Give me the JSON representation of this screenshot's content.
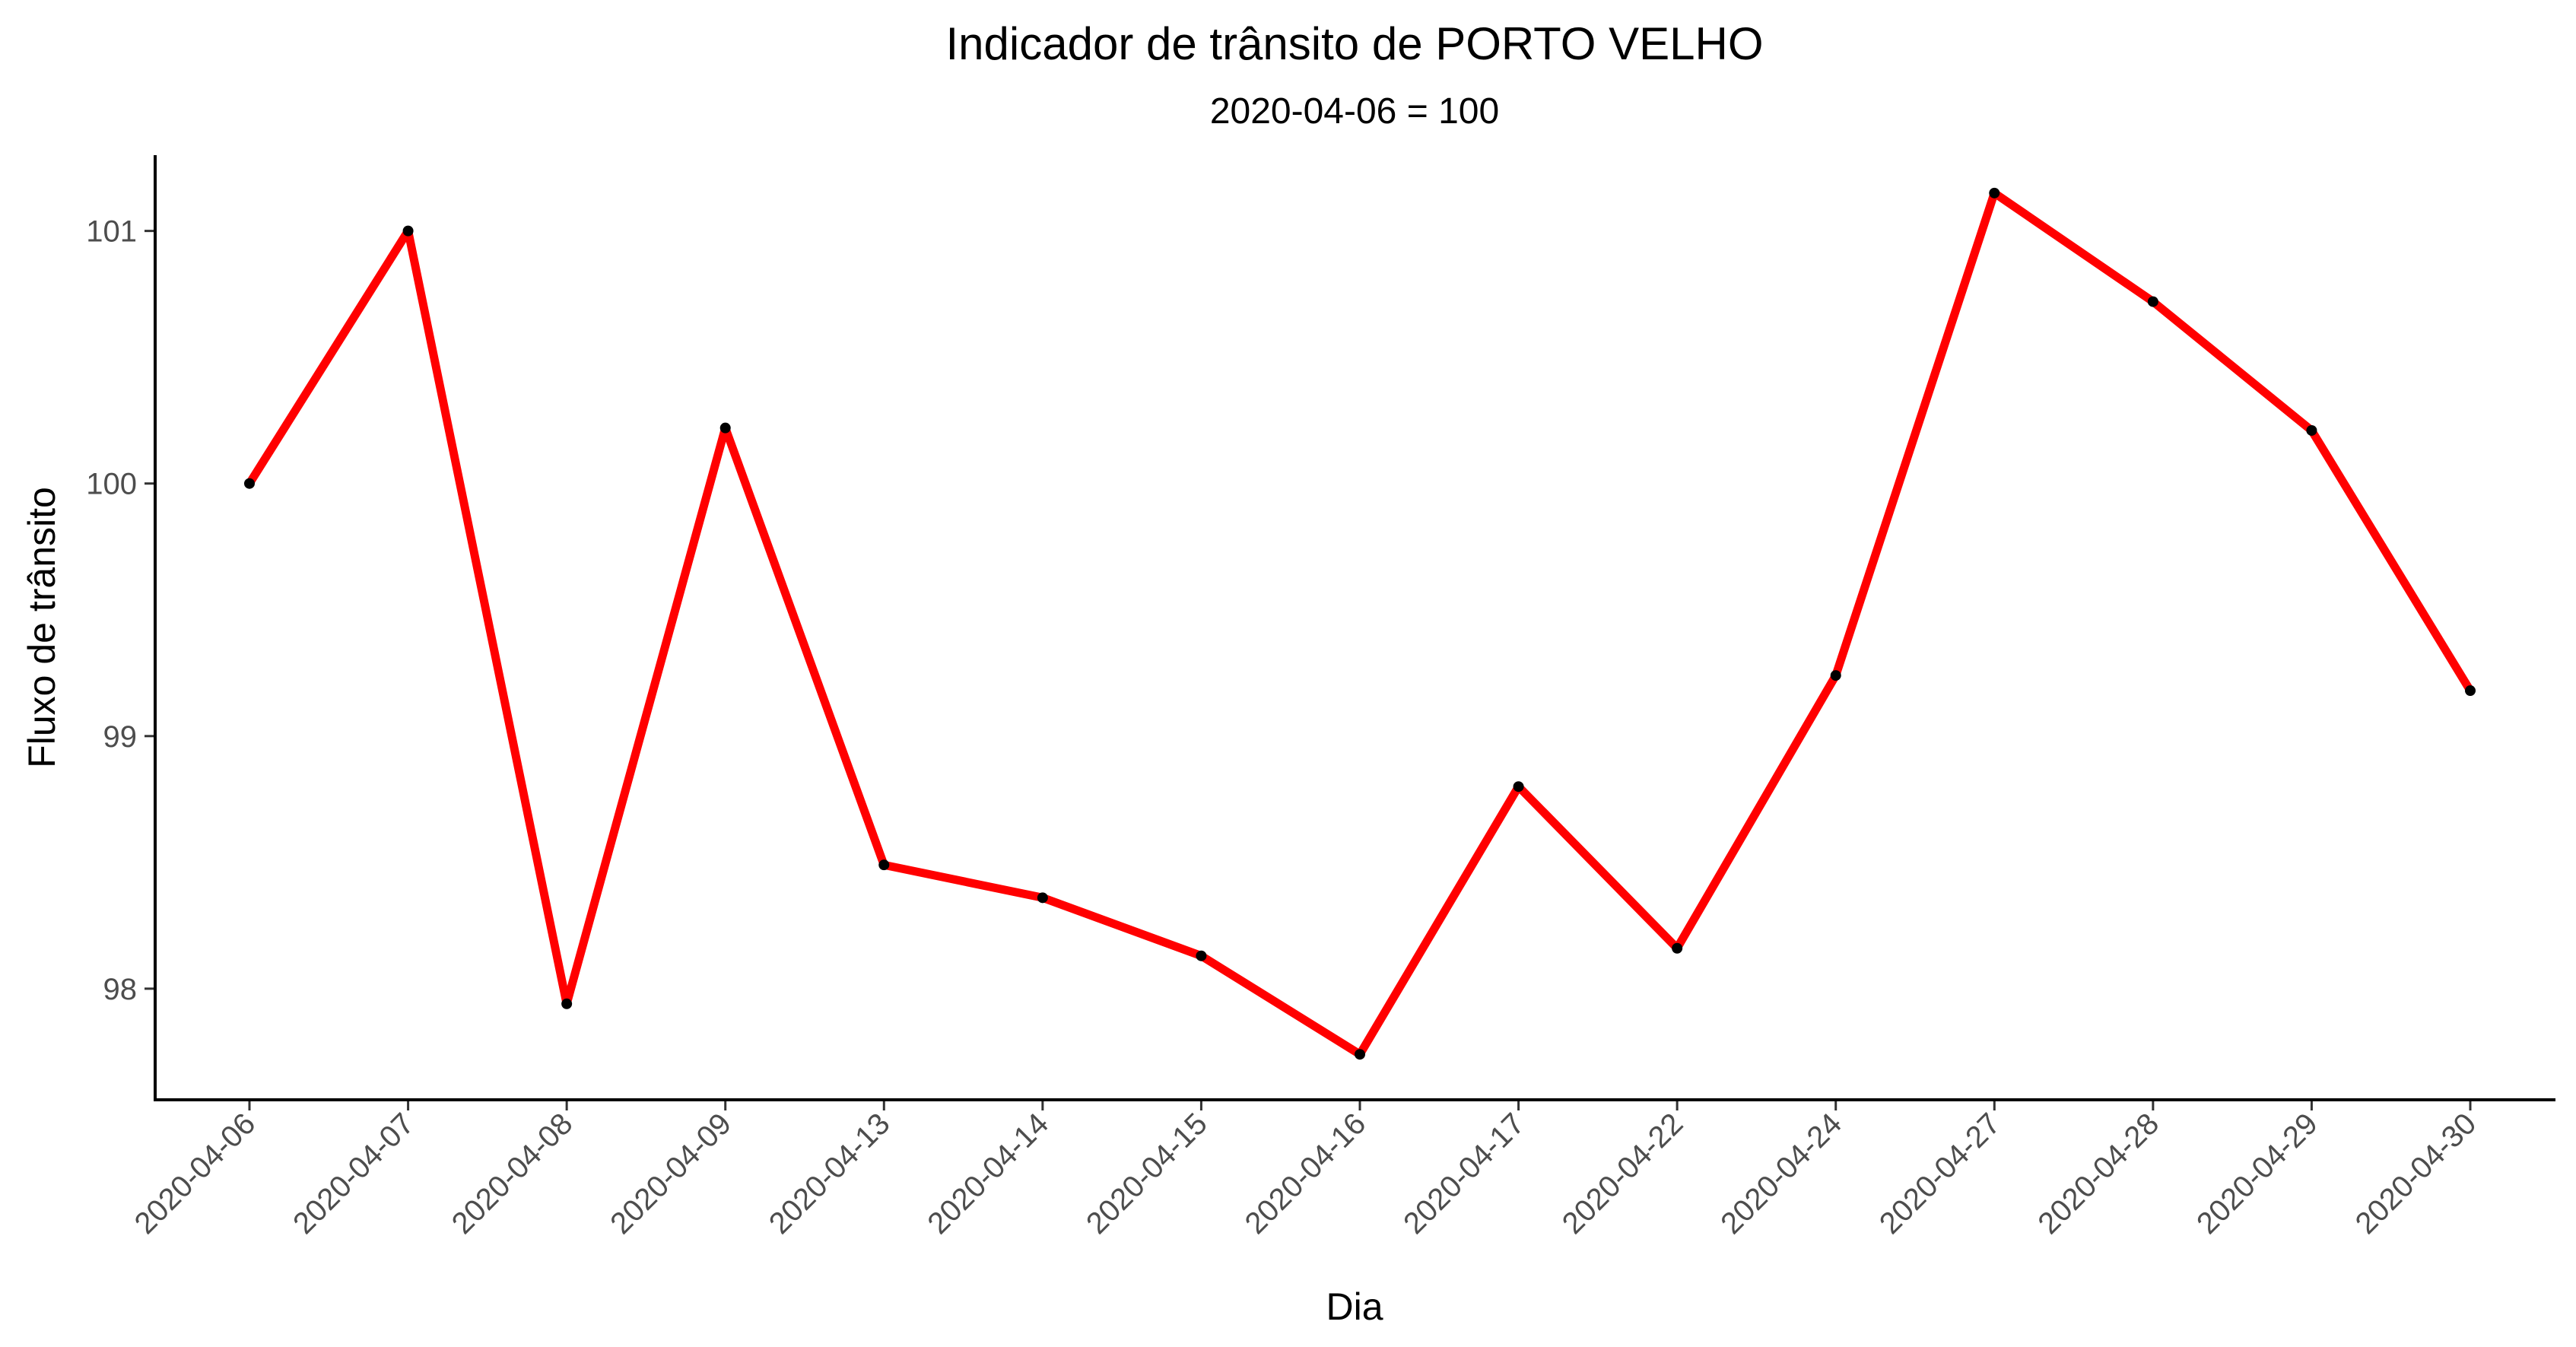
{
  "chart_data": {
    "type": "line",
    "title": "Indicador de trânsito de PORTO VELHO",
    "subtitle": "2020-04-06 = 100",
    "xlabel": "Dia",
    "ylabel": "Fluxo de trânsito",
    "categories": [
      "2020-04-06",
      "2020-04-07",
      "2020-04-08",
      "2020-04-09",
      "2020-04-13",
      "2020-04-14",
      "2020-04-15",
      "2020-04-16",
      "2020-04-17",
      "2020-04-22",
      "2020-04-24",
      "2020-04-27",
      "2020-04-28",
      "2020-04-29",
      "2020-04-30"
    ],
    "series": [
      {
        "values": [
          100.0,
          101.0,
          97.94,
          100.22,
          98.49,
          98.36,
          98.13,
          97.74,
          98.8,
          98.16,
          99.24,
          101.15,
          100.72,
          100.21,
          99.18
        ]
      }
    ],
    "ylim": [
      97.56,
      101.3
    ],
    "yticks": [
      98,
      99,
      100,
      101
    ],
    "ytick_labels": [
      "98",
      "99",
      "100",
      "101"
    ],
    "grid": false,
    "legend": "none",
    "colors": {
      "line": "#ff0000",
      "points": "#000000",
      "axis": "#000000",
      "tick_label": "#4d4d4d"
    }
  }
}
